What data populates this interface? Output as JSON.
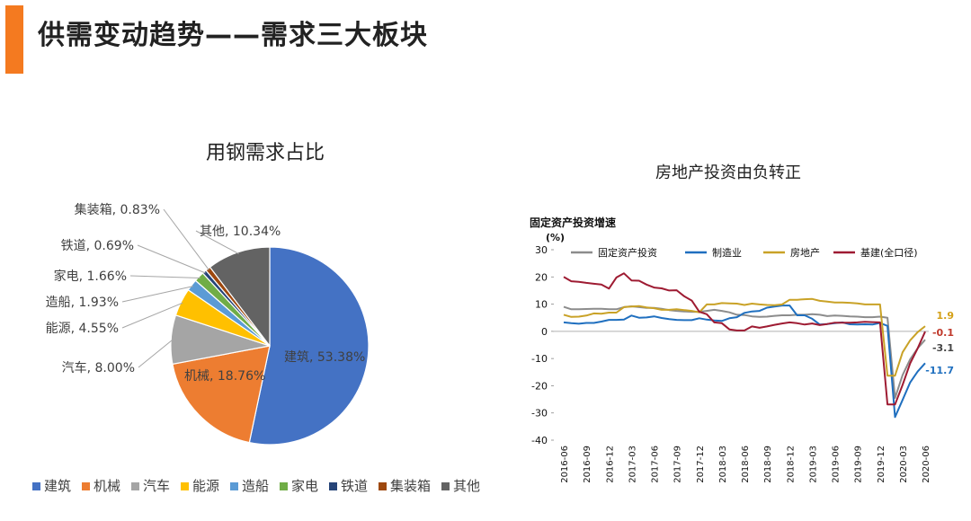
{
  "header": {
    "title": "供需变动趋势——需求三大板块",
    "accent_color": "#F47A20"
  },
  "chart_data": [
    {
      "type": "pie",
      "title": "用钢需求占比",
      "start_angle_deg": 0,
      "direction": "clockwise",
      "legend_placement": "bottom",
      "slices": [
        {
          "label": "建筑",
          "value": 53.38,
          "display": "建筑, 53.38%",
          "color": "#4472C4"
        },
        {
          "label": "机械",
          "value": 18.76,
          "display": "机械, 18.76%",
          "color": "#ED7D31"
        },
        {
          "label": "汽车",
          "value": 8.0,
          "display": "汽车, 8.00%",
          "color": "#A5A5A5"
        },
        {
          "label": "能源",
          "value": 4.55,
          "display": "能源, 4.55%",
          "color": "#FFC000"
        },
        {
          "label": "造船",
          "value": 1.93,
          "display": "造船, 1.93%",
          "color": "#5B9BD5"
        },
        {
          "label": "家电",
          "value": 1.66,
          "display": "家电, 1.66%",
          "color": "#70AD47"
        },
        {
          "label": "铁道",
          "value": 0.69,
          "display": "铁道, 0.69%",
          "color": "#264478"
        },
        {
          "label": "集装箱",
          "value": 0.83,
          "display": "集装箱, 0.83%",
          "color": "#9E480E"
        },
        {
          "label": "其他",
          "value": 10.34,
          "display": "其他, 10.34%",
          "color": "#636363"
        }
      ]
    },
    {
      "type": "line",
      "title": "房地产投资由负转正",
      "inner_title": "固定资产投资增速",
      "ylabel": "(%)",
      "ylim": [
        -40,
        30
      ],
      "yticks": [
        30,
        20,
        10,
        0,
        -10,
        -20,
        -30,
        -40
      ],
      "grid": false,
      "legend_placement": "top",
      "x_tick_labels": [
        "2016-06",
        "2016-09",
        "2016-12",
        "2017-03",
        "2017-06",
        "2017-09",
        "2017-12",
        "2018-03",
        "2018-06",
        "2018-09",
        "2018-12",
        "2019-03",
        "2019-06",
        "2019-09",
        "2019-12",
        "2020-03",
        "2020-06"
      ],
      "x": [
        "2016-06",
        "2016-07",
        "2016-08",
        "2016-09",
        "2016-10",
        "2016-11",
        "2016-12",
        "2017-01",
        "2017-02",
        "2017-03",
        "2017-04",
        "2017-05",
        "2017-06",
        "2017-07",
        "2017-08",
        "2017-09",
        "2017-10",
        "2017-11",
        "2017-12",
        "2018-01",
        "2018-02",
        "2018-03",
        "2018-04",
        "2018-05",
        "2018-06",
        "2018-07",
        "2018-08",
        "2018-09",
        "2018-10",
        "2018-11",
        "2018-12",
        "2019-01",
        "2019-02",
        "2019-03",
        "2019-04",
        "2019-05",
        "2019-06",
        "2019-07",
        "2019-08",
        "2019-09",
        "2019-10",
        "2019-11",
        "2019-12",
        "2020-01",
        "2020-02",
        "2020-03",
        "2020-04",
        "2020-05",
        "2020-06"
      ],
      "series": [
        {
          "name": "固定资产投资",
          "color": "#8C8C8C",
          "values": [
            9.0,
            8.1,
            8.1,
            8.2,
            8.3,
            8.3,
            8.1,
            8.1,
            8.9,
            9.2,
            8.9,
            8.6,
            8.6,
            8.3,
            7.8,
            7.5,
            7.3,
            7.2,
            7.2,
            7.5,
            7.9,
            7.5,
            7.0,
            6.1,
            6.0,
            5.5,
            5.3,
            5.4,
            5.7,
            5.9,
            5.9,
            6.1,
            6.1,
            6.3,
            6.1,
            5.6,
            5.8,
            5.7,
            5.5,
            5.4,
            5.2,
            5.2,
            5.4,
            5.0,
            -24.5,
            -16.1,
            -10.3,
            -6.3,
            -3.1
          ],
          "end_label": "-3.1",
          "end_label_color": "#444444"
        },
        {
          "name": "制造业",
          "color": "#1F6FBF",
          "values": [
            3.3,
            3.0,
            2.8,
            3.1,
            3.1,
            3.6,
            4.2,
            4.2,
            4.3,
            5.8,
            5.0,
            5.1,
            5.5,
            4.9,
            4.5,
            4.2,
            4.1,
            4.1,
            4.8,
            4.3,
            4.0,
            3.8,
            4.8,
            5.2,
            6.8,
            7.3,
            7.5,
            8.7,
            9.1,
            9.5,
            9.5,
            5.9,
            5.9,
            4.6,
            2.5,
            2.7,
            3.0,
            3.3,
            2.6,
            2.5,
            2.6,
            2.5,
            3.1,
            2.0,
            -31.5,
            -25.2,
            -18.8,
            -14.8,
            -11.7
          ],
          "end_label": "-11.7",
          "end_label_color": "#1F6FBF"
        },
        {
          "name": "房地产",
          "color": "#C9A227",
          "values": [
            6.1,
            5.3,
            5.4,
            5.8,
            6.6,
            6.5,
            6.9,
            6.9,
            8.9,
            9.1,
            9.3,
            8.8,
            8.5,
            7.9,
            7.9,
            8.1,
            7.8,
            7.5,
            7.0,
            9.9,
            9.9,
            10.4,
            10.3,
            10.2,
            9.7,
            10.2,
            9.9,
            9.7,
            9.6,
            9.9,
            11.6,
            11.6,
            11.8,
            11.9,
            11.2,
            10.9,
            10.6,
            10.6,
            10.5,
            10.3,
            9.9,
            9.9,
            9.9,
            -16.3,
            -16.3,
            -7.7,
            -3.3,
            -0.3,
            1.9
          ],
          "end_label": "1.9",
          "end_label_color": "#D4A017"
        },
        {
          "name": "基建(全口径)",
          "color": "#9E1B32",
          "values": [
            20.0,
            18.4,
            18.2,
            17.8,
            17.5,
            17.2,
            15.7,
            19.8,
            21.3,
            18.7,
            18.6,
            17.2,
            16.1,
            15.8,
            15.0,
            15.1,
            12.9,
            11.3,
            7.2,
            6.3,
            3.3,
            3.0,
            0.7,
            0.3,
            0.3,
            1.8,
            1.3,
            1.8,
            2.4,
            2.9,
            3.3,
            3.0,
            2.5,
            2.9,
            2.3,
            2.7,
            3.2,
            3.2,
            3.2,
            3.3,
            3.5,
            3.4,
            3.3,
            -26.9,
            -26.9,
            -19.7,
            -11.8,
            -6.3,
            -0.1
          ],
          "end_label": "-0.1",
          "end_label_color": "#C0392B"
        }
      ]
    }
  ]
}
